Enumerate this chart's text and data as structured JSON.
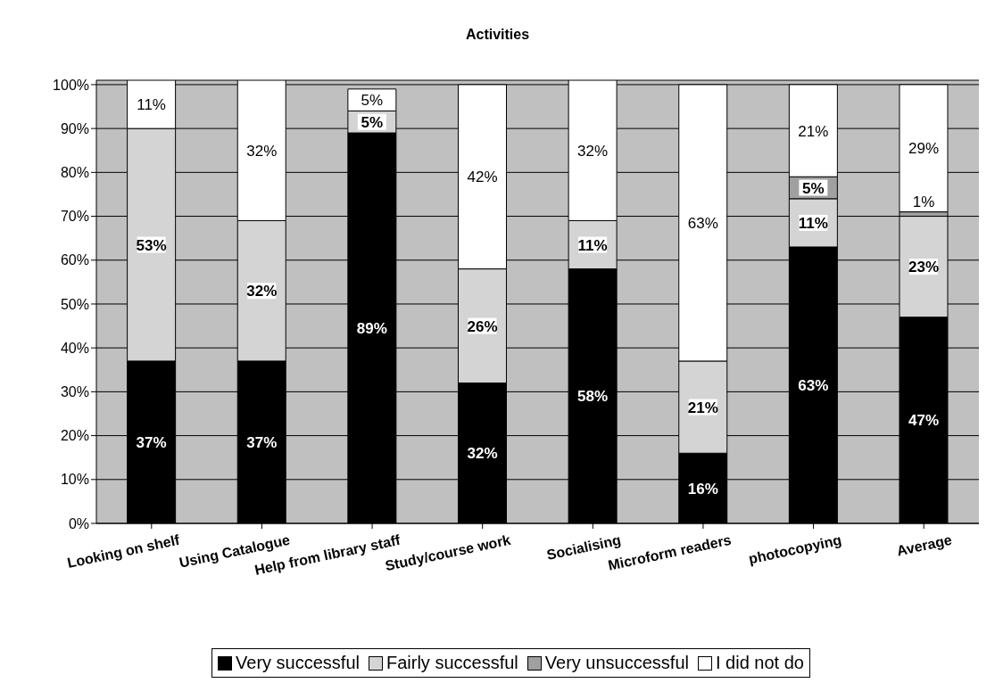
{
  "chart_data": {
    "type": "bar",
    "title": "Activities",
    "stacked": true,
    "categories": [
      "Looking on shelf",
      "Using Catalogue",
      "Help from library staff",
      "Study/course work",
      "Socialising",
      "Microform readers",
      "photocopying",
      "Average"
    ],
    "series": [
      {
        "name": "Very successful",
        "color": "#000000",
        "values": [
          37,
          37,
          89,
          32,
          58,
          16,
          63,
          47
        ],
        "value_labels": [
          "37%",
          "37%",
          "89%",
          "32%",
          "58%",
          "16%",
          "63%",
          "47%"
        ]
      },
      {
        "name": "Fairly successful",
        "color": "#d4d4d4",
        "values": [
          53,
          32,
          5,
          26,
          11,
          21,
          11,
          23
        ],
        "value_labels": [
          "53%",
          "32%",
          "5%",
          "26%",
          "11%",
          "21%",
          "11%",
          "23%"
        ]
      },
      {
        "name": "Very unsuccessful",
        "color": "#a0a0a0",
        "values": [
          0,
          0,
          0,
          0,
          0,
          0,
          5,
          1
        ],
        "value_labels": [
          null,
          null,
          null,
          null,
          null,
          null,
          "5%",
          "1%"
        ]
      },
      {
        "name": "I did not do",
        "color": "#ffffff",
        "values": [
          11,
          32,
          5,
          42,
          32,
          63,
          21,
          29
        ],
        "value_labels": [
          "11%",
          "32%",
          "5%",
          "42%",
          "32%",
          "63%",
          "21%",
          "29%"
        ]
      }
    ],
    "ylim": [
      0,
      101
    ],
    "yticks": [
      {
        "value": 0,
        "label": "0%"
      },
      {
        "value": 10,
        "label": "10%"
      },
      {
        "value": 20,
        "label": "20%"
      },
      {
        "value": 30,
        "label": "30%"
      },
      {
        "value": 40,
        "label": "40%"
      },
      {
        "value": 50,
        "label": "50%"
      },
      {
        "value": 60,
        "label": "60%"
      },
      {
        "value": 70,
        "label": "70%"
      },
      {
        "value": 80,
        "label": "80%"
      },
      {
        "value": 90,
        "label": "90%"
      },
      {
        "value": 100,
        "label": "100%"
      }
    ],
    "grid": "y",
    "legend": "bottom"
  }
}
